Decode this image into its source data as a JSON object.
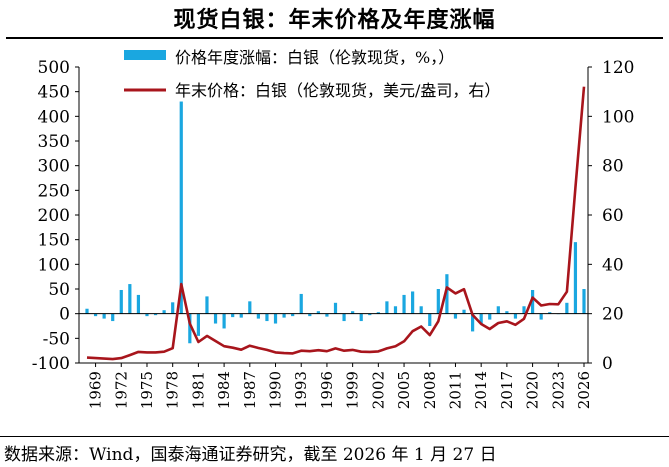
{
  "title": "现货白银：年末价格及年度涨幅",
  "source": "数据来源：Wind，国泰海通证券研究，截至 2026 年 1 月 27 日",
  "chart_data": {
    "type": "bar+line",
    "legend_placement": "top",
    "grid": false,
    "x_tick_labels": [
      "1969",
      "1972",
      "1975",
      "1978",
      "1981",
      "1984",
      "1987",
      "1990",
      "1993",
      "1996",
      "1999",
      "2002",
      "2005",
      "2008",
      "2011",
      "2014",
      "2017",
      "2020",
      "2023",
      "2026"
    ],
    "y_left": {
      "ylim": [
        -100,
        500
      ],
      "ticks": [
        "500",
        "450",
        "400",
        "350",
        "300",
        "250",
        "200",
        "150",
        "100",
        "50",
        "0",
        "-50",
        "-100"
      ]
    },
    "y_right": {
      "ylim": [
        0,
        120
      ],
      "ticks": [
        "120",
        "100",
        "80",
        "60",
        "40",
        "20",
        "0"
      ]
    },
    "years": [
      1968,
      1969,
      1970,
      1971,
      1972,
      1973,
      1974,
      1975,
      1976,
      1977,
      1978,
      1979,
      1980,
      1981,
      1982,
      1983,
      1984,
      1985,
      1986,
      1987,
      1988,
      1989,
      1990,
      1991,
      1992,
      1993,
      1994,
      1995,
      1996,
      1997,
      1998,
      1999,
      2000,
      2001,
      2002,
      2003,
      2004,
      2005,
      2006,
      2007,
      2008,
      2009,
      2010,
      2011,
      2012,
      2013,
      2014,
      2015,
      2016,
      2017,
      2018,
      2019,
      2020,
      2021,
      2022,
      2023,
      2024,
      2025,
      2026
    ],
    "series": [
      {
        "name": "价格年度涨幅：白银（伦敦现货，%，）",
        "type": "bar",
        "axis": "left",
        "color": "#1aa7e0",
        "values": [
          10,
          -5,
          -10,
          -15,
          48,
          60,
          38,
          -5,
          -3,
          7,
          23,
          430,
          -60,
          -45,
          35,
          -20,
          -30,
          -7,
          -8,
          25,
          -10,
          -15,
          -20,
          -8,
          -5,
          40,
          -5,
          5,
          -6,
          22,
          -15,
          5,
          -15,
          -3,
          3,
          25,
          15,
          38,
          45,
          15,
          -25,
          50,
          80,
          -10,
          8,
          -36,
          -20,
          -12,
          15,
          5,
          -10,
          15,
          48,
          -12,
          3,
          0,
          22,
          145,
          50
        ]
      },
      {
        "name": "年末价格：白银（伦敦现货，美元/盎司，右）",
        "type": "line",
        "axis": "right",
        "color": "#a8151c",
        "values": [
          2.2,
          2.0,
          1.8,
          1.6,
          2.0,
          3.2,
          4.5,
          4.3,
          4.3,
          4.6,
          6.0,
          32.0,
          16.0,
          8.5,
          11.0,
          8.9,
          6.8,
          6.2,
          5.4,
          7.0,
          6.1,
          5.3,
          4.3,
          4.0,
          3.9,
          5.0,
          4.8,
          5.2,
          4.8,
          5.9,
          5.0,
          5.3,
          4.6,
          4.5,
          4.7,
          5.9,
          6.8,
          8.8,
          12.9,
          14.8,
          11.3,
          16.9,
          30.6,
          28.2,
          29.9,
          19.5,
          15.8,
          13.8,
          16.2,
          16.9,
          15.5,
          17.9,
          26.5,
          23.3,
          23.9,
          23.8,
          28.9,
          71.0,
          112.0
        ]
      }
    ]
  }
}
